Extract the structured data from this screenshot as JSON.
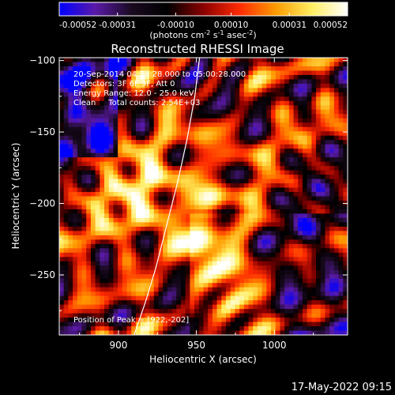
{
  "chart_data": {
    "type": "heatmap",
    "title": "Reconstructed RHESSI Image",
    "xlabel": "Heliocentric X (arcsec)",
    "ylabel": "Heliocentric Y (arcsec)",
    "xlim": [
      862,
      1047
    ],
    "ylim": [
      -292,
      -98
    ],
    "x_ticks": [
      900,
      950,
      1000
    ],
    "y_ticks": [
      -100,
      -150,
      -200,
      -250
    ],
    "colorbar": {
      "range": [
        -0.00052,
        0.00052
      ],
      "tick_values": [
        -0.00052,
        -0.00031,
        -0.0001,
        0.0001,
        0.00031,
        0.00052
      ],
      "tick_labels": [
        "-0.00052",
        "-0.00031",
        "-0.00010",
        "0.00010",
        "0.00031",
        "0.00052"
      ],
      "units_label": "(photons cm",
      "units_exp1": "-2",
      "units_mid": " s",
      "units_exp2": "-1",
      "units_mid2": " asec",
      "units_exp3": "-2",
      "units_close": ")",
      "colormap": [
        "#0000ff",
        "#5a1aa8",
        "#1a0a20",
        "#000000",
        "#8a0000",
        "#ff2a00",
        "#ff9a00",
        "#ffee60",
        "#ffffff"
      ]
    },
    "info": [
      "20-Sep-2014 04:54:28.000 to 05:00:28.000",
      "Detectors: 3F 6F 9F, Att 0",
      "Energy Range: 12.0 - 25.0 keV",
      "Clean     Total counts: 2.54E+03"
    ],
    "peak_label": "Position of Peak = [922,-202]",
    "limb_curve": [
      [
        910,
        -292
      ],
      [
        917,
        -270
      ],
      [
        924,
        -245
      ],
      [
        931,
        -215
      ],
      [
        938,
        -185
      ],
      [
        944,
        -155
      ],
      [
        949,
        -125
      ],
      [
        952,
        -98
      ]
    ]
  },
  "timestamp": "17-May-2022 09:15"
}
